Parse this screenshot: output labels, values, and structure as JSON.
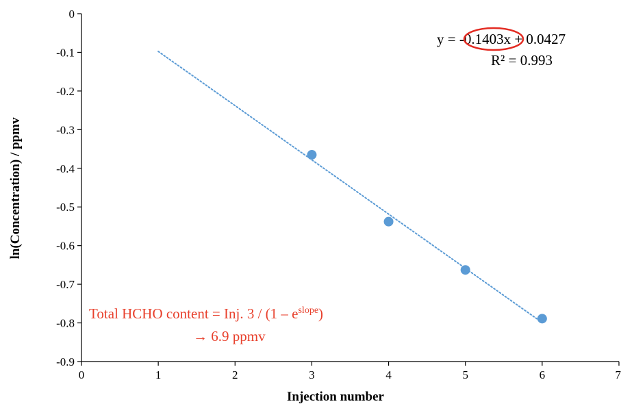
{
  "chart_data": {
    "type": "scatter",
    "xlabel": "Injection number",
    "ylabel": "ln(Concentration) / ppmv",
    "xlim": [
      0,
      7
    ],
    "ylim": [
      -0.9,
      0
    ],
    "x_ticks": [
      "0",
      "1",
      "2",
      "3",
      "4",
      "5",
      "6",
      "7"
    ],
    "y_ticks": [
      "0",
      "-0.1",
      "-0.2",
      "-0.3",
      "-0.4",
      "-0.5",
      "-0.6",
      "-0.7",
      "-0.8",
      "-0.9"
    ],
    "grid": false,
    "legend": "none",
    "series": [
      {
        "x": [
          3,
          4,
          5,
          6
        ],
        "y": [
          -0.365,
          -0.538,
          -0.663,
          -0.789
        ],
        "color": "#5b9bd5"
      }
    ],
    "trendline": {
      "slope": -0.1403,
      "intercept": 0.0427,
      "x_range": [
        1,
        6
      ],
      "style": "dotted",
      "color": "#5b9bd5"
    },
    "annotations": {
      "equation_prefix": "y = ",
      "equation_slope": "-0.1403x",
      "equation_suffix": " + 0.0427",
      "r2": "R² = 0.993",
      "note_line1_main": "Total HCHO content = Inj. 3 / (1 – e",
      "note_line1_sup": "slope",
      "note_line1_end": ")",
      "note_line2": "→ 6.9 ppmv",
      "highlight_color": "#e32b22",
      "note_color": "#e8402c"
    }
  }
}
